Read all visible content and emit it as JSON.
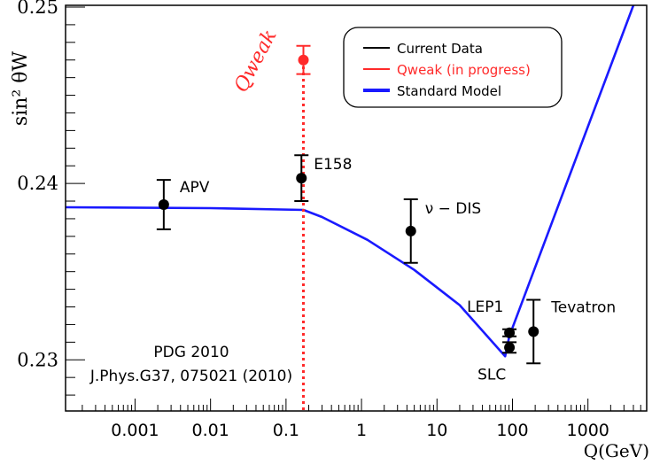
{
  "chart_data": {
    "type": "scatter",
    "title": "",
    "xlabel": "Q(GeV)",
    "ylabel": "sin² θW",
    "x_scale": "log",
    "xlim": [
      0.00012,
      6000
    ],
    "ylim": [
      0.2271,
      0.2501
    ],
    "x_ticks": [
      {
        "value": 0.001,
        "label": "0.001"
      },
      {
        "value": 0.01,
        "label": "0.01"
      },
      {
        "value": 0.1,
        "label": "0.1"
      },
      {
        "value": 1,
        "label": "1"
      },
      {
        "value": 10,
        "label": "10"
      },
      {
        "value": 100,
        "label": "100"
      },
      {
        "value": 1000,
        "label": "1000"
      }
    ],
    "y_ticks": [
      {
        "value": 0.23,
        "label": "0.23"
      },
      {
        "value": 0.24,
        "label": "0.24"
      },
      {
        "value": 0.25,
        "label": "0.25"
      }
    ],
    "legend": {
      "placement": "top-right",
      "entries": [
        {
          "label": "Current Data",
          "color": "#000000"
        },
        {
          "label": "Qweak (in progress)",
          "color": "#ff2a2a"
        },
        {
          "label": "Standard Model",
          "color": "#1a1aff"
        }
      ]
    },
    "series": [
      {
        "name": "Current Data",
        "color": "#000000",
        "points": [
          {
            "label": "APV",
            "x": 0.0024,
            "y": 0.2388,
            "err": 0.0014
          },
          {
            "label": "E158",
            "x": 0.16,
            "y": 0.2403,
            "err": 0.0013
          },
          {
            "label": "ν − DIS",
            "x": 4.5,
            "y": 0.2373,
            "err": 0.0018
          },
          {
            "label": "LEP1",
            "x": 91.19,
            "y": 0.23153,
            "err": 0.0002
          },
          {
            "label": "SLC",
            "x": 91.19,
            "y": 0.2307,
            "err": 0.0003
          },
          {
            "label": "Tevatron",
            "x": 190,
            "y": 0.2316,
            "err": 0.0018
          }
        ]
      },
      {
        "name": "Qweak (in progress)",
        "color": "#ff2a2a",
        "points": [
          {
            "label": "Qweak",
            "x": 0.17,
            "y": 0.247,
            "err": 0.0008
          }
        ]
      },
      {
        "name": "Standard Model",
        "color": "#1a1aff",
        "line": [
          [
            0.00012,
            0.23865
          ],
          [
            0.01,
            0.2386
          ],
          [
            0.17,
            0.2385
          ],
          [
            0.3,
            0.2381
          ],
          [
            1.2,
            0.2368
          ],
          [
            5,
            0.2351
          ],
          [
            20,
            0.2331
          ],
          [
            80,
            0.2302
          ],
          [
            91,
            0.23135
          ],
          [
            4000,
            0.2501
          ]
        ]
      }
    ],
    "annotations": [
      {
        "text": "PDG 2010"
      },
      {
        "text": "J.Phys.G37, 075021 (2010)"
      }
    ],
    "qweak_marker": {
      "x": 0.17,
      "style": "dotted",
      "color": "#ff2a2a"
    }
  }
}
